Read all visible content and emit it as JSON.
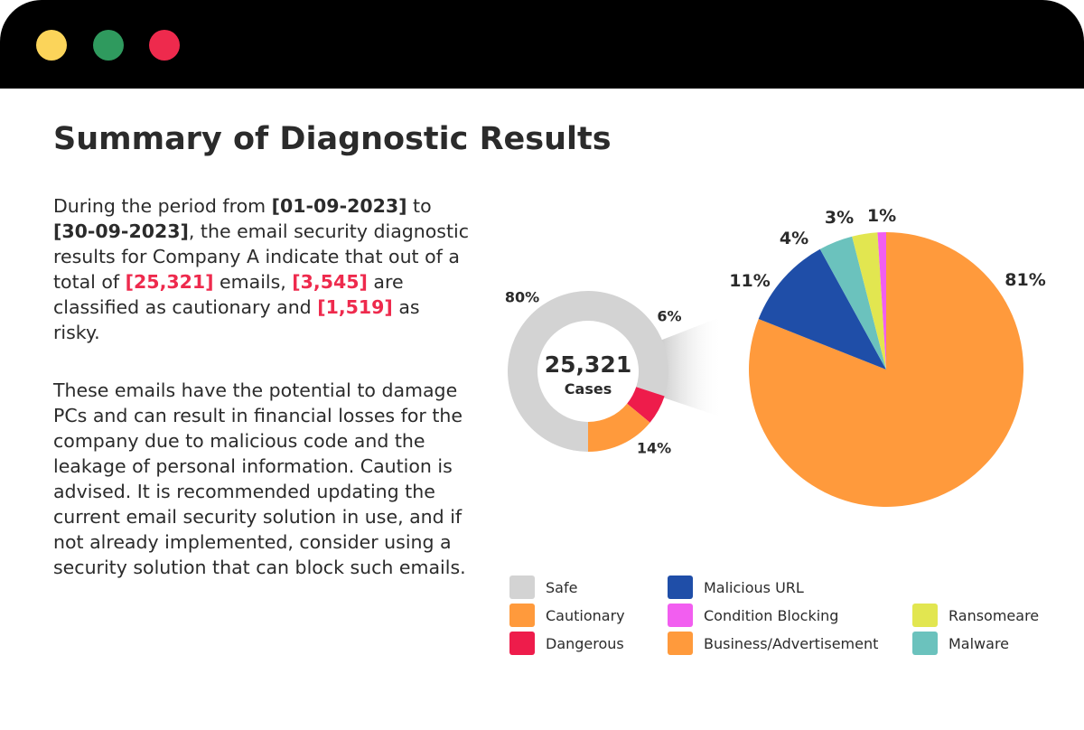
{
  "window": {
    "controls": [
      {
        "name": "minimize-dot",
        "color": "#fbd45a"
      },
      {
        "name": "maximize-dot",
        "color": "#2f9a5e"
      },
      {
        "name": "close-dot",
        "color": "#ee2a4d"
      }
    ]
  },
  "page_title": "Summary of Diagnostic Results",
  "summary": {
    "p1_a": "During the period from ",
    "date_start": "[01-09-2023]",
    "p1_b": " to ",
    "date_end": "[30-09-2023]",
    "p1_c": ", the email security diagnostic results for Company A indicate that out of a total of ",
    "total": "[25,321]",
    "p1_d": " emails, ",
    "cautionary": "[3,545]",
    "p1_e": " are classified as cautionary and ",
    "risky": "[1,519]",
    "p1_f": " as risky.",
    "p2": "These emails have the potential to damage PCs and can result in financial losses for the company due to malicious code and the leakage of personal information. Caution is advised. It is recommended updating the current email security solution in use, and if not already implemented, consider using a security solution that can block such emails."
  },
  "chart_data": [
    {
      "type": "pie",
      "variant": "donut",
      "center_value": "25,321",
      "center_label": "Cases",
      "slices": [
        {
          "name": "Safe",
          "value": 80,
          "label": "80%",
          "color": "#d3d3d3"
        },
        {
          "name": "Dangerous",
          "value": 6,
          "label": "6%",
          "color": "#ee1c4b"
        },
        {
          "name": "Cautionary",
          "value": 14,
          "label": "14%",
          "color": "#ff9a3c"
        }
      ]
    },
    {
      "type": "pie",
      "title": "",
      "slices": [
        {
          "name": "Business/Advertisement",
          "value": 81,
          "label": "81%",
          "color": "#ff9a3c"
        },
        {
          "name": "Malicious URL",
          "value": 11,
          "label": "11%",
          "color": "#1f4ea8"
        },
        {
          "name": "Malware",
          "value": 4,
          "label": "4%",
          "color": "#6bc2bd"
        },
        {
          "name": "Ransomeare",
          "value": 3,
          "label": "3%",
          "color": "#e2e650"
        },
        {
          "name": "Condition Blocking",
          "value": 1,
          "label": "1%",
          "color": "#f25ef0"
        }
      ]
    }
  ],
  "legend": [
    {
      "label": "Safe",
      "color": "#d3d3d3"
    },
    {
      "label": "Cautionary",
      "color": "#ff9a3c"
    },
    {
      "label": "Dangerous",
      "color": "#ee1c4b"
    },
    {
      "label": "Malicious URL",
      "color": "#1f4ea8"
    },
    {
      "label": "Condition Blocking",
      "color": "#f25ef0"
    },
    {
      "label": "Business/Advertisement",
      "color": "#ff9a3c"
    },
    {
      "label": "Ransomeare",
      "color": "#e2e650"
    },
    {
      "label": "Malware",
      "color": "#6bc2bd"
    }
  ]
}
